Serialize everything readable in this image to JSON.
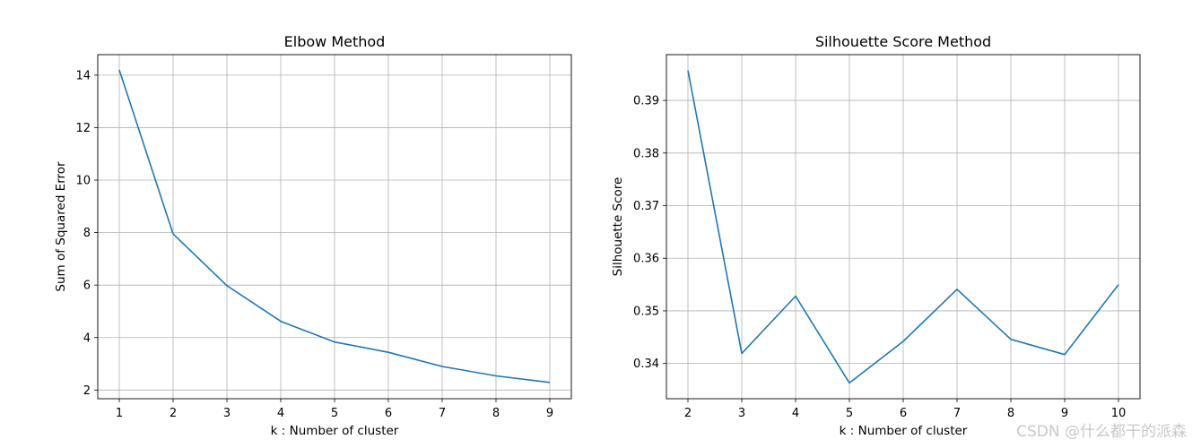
{
  "chart_data": [
    {
      "type": "line",
      "title": "Elbow Method",
      "xlabel": "k : Number of cluster",
      "ylabel": "Sum of Squared Error",
      "x": [
        1,
        2,
        3,
        4,
        5,
        6,
        7,
        8,
        9
      ],
      "series": [
        {
          "values": [
            14.2,
            7.95,
            5.98,
            4.62,
            3.83,
            3.44,
            2.9,
            2.54,
            2.29
          ]
        }
      ],
      "xlim": [
        0.6,
        9.4
      ],
      "ylim": [
        1.67,
        14.78
      ],
      "xticks": [
        1,
        2,
        3,
        4,
        5,
        6,
        7,
        8,
        9
      ],
      "yticks": [
        2,
        4,
        6,
        8,
        10,
        12,
        14
      ],
      "grid": true,
      "color": "#1f77b4"
    },
    {
      "type": "line",
      "title": "Silhouette Score Method",
      "xlabel": "k : Number of cluster",
      "ylabel": "Silhouette Score",
      "x": [
        2,
        3,
        4,
        5,
        6,
        7,
        8,
        9,
        10
      ],
      "series": [
        {
          "values": [
            0.3957,
            0.3419,
            0.3528,
            0.3363,
            0.3442,
            0.3541,
            0.3446,
            0.3417,
            0.355
          ]
        }
      ],
      "xlim": [
        1.6,
        10.4
      ],
      "ylim": [
        0.3333,
        0.3987
      ],
      "xticks": [
        2,
        3,
        4,
        5,
        6,
        7,
        8,
        9,
        10
      ],
      "yticks": [
        0.34,
        0.35,
        0.36,
        0.37,
        0.38,
        0.39
      ],
      "grid": true,
      "color": "#1f77b4"
    }
  ],
  "watermark": "CSDN @什么都干的派森"
}
